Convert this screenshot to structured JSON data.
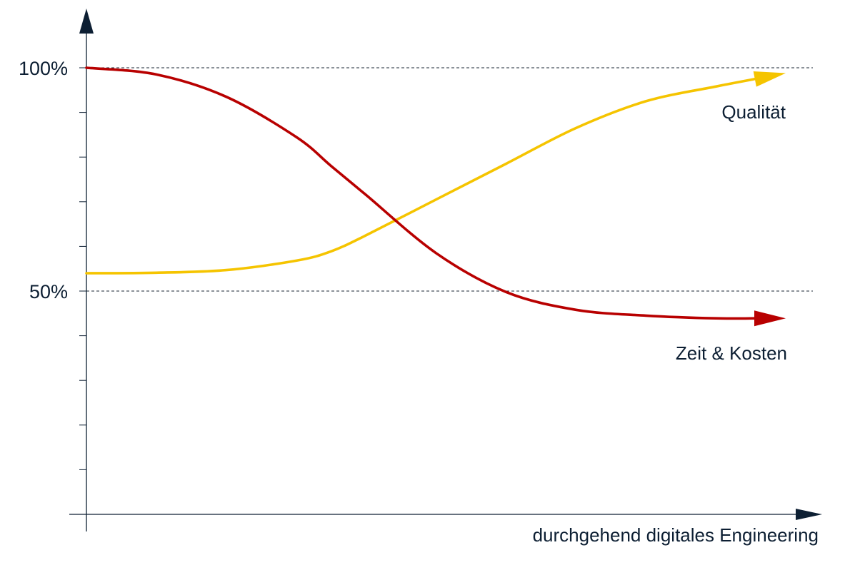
{
  "chart_data": {
    "type": "line",
    "title": "",
    "xlabel": "durchgehend digitales Engineering",
    "ylabel": "",
    "x_range": [
      0,
      100
    ],
    "ylim": [
      0,
      100
    ],
    "y_tick_labels": [
      {
        "value": 100,
        "label": "100%"
      },
      {
        "value": 50,
        "label": "50%"
      }
    ],
    "y_minor_ticks": [
      10,
      20,
      30,
      40,
      50,
      60,
      70,
      80,
      90,
      100
    ],
    "reference_lines": [
      100,
      50
    ],
    "grid": false,
    "legend": "none",
    "series": [
      {
        "name": "Qualität",
        "color": "#f5c400",
        "x": [
          0,
          10,
          20,
          30,
          35,
          40,
          50,
          60,
          70,
          80,
          90,
          100
        ],
        "values": [
          54,
          54.1,
          54.7,
          56.8,
          58.9,
          62.5,
          70.5,
          78.5,
          86.5,
          92.5,
          95.8,
          98.8
        ]
      },
      {
        "name": "Zeit & Kosten",
        "color": "#b80000",
        "x": [
          0,
          10,
          20,
          30,
          35,
          40,
          50,
          60,
          70,
          80,
          90,
          100
        ],
        "values": [
          100,
          98.5,
          93.5,
          84.5,
          78,
          71.5,
          58.5,
          49.8,
          45.8,
          44.5,
          43.9,
          43.9
        ]
      }
    ]
  }
}
